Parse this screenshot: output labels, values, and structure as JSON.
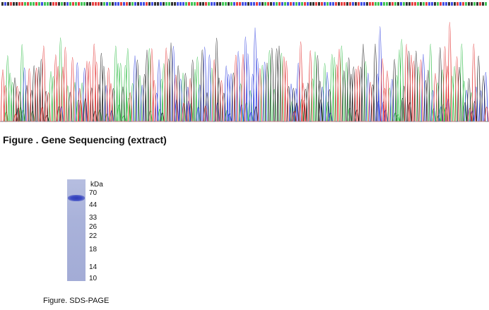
{
  "figure1": {
    "caption": "Figure . Gene Sequencing (extract)",
    "trace_colors": {
      "A": "#22b83a",
      "C": "#2233dd",
      "G": "#111111",
      "T": "#e02020"
    }
  },
  "figure2": {
    "caption": "Figure. SDS-PAGE",
    "unit_label": "kDa",
    "markers": [
      "70",
      "44",
      "33",
      "26",
      "22",
      "18",
      "14",
      "10"
    ]
  }
}
